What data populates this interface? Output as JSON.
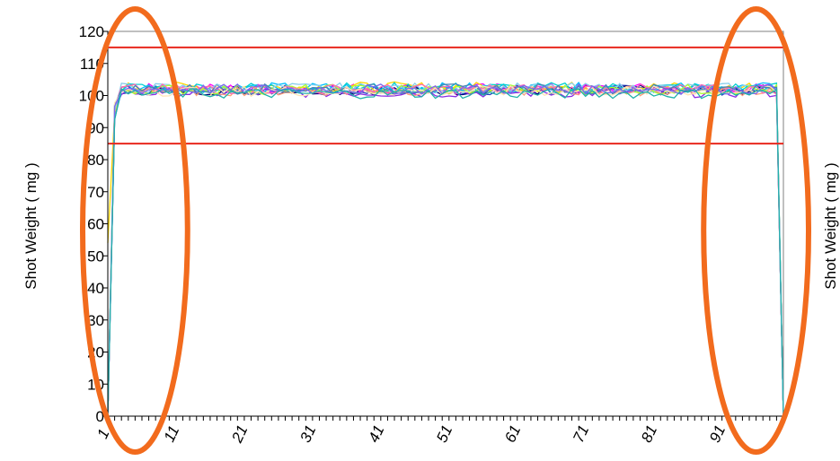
{
  "chart_data": {
    "type": "line",
    "title": "",
    "xlabel": "",
    "ylabel": "Shot Weight ( mg )",
    "ylabel_right": "Shot Weight ( mg )",
    "xlim": [
      1,
      100
    ],
    "ylim": [
      0,
      120
    ],
    "yticks": [
      "0",
      "10",
      "20",
      "30",
      "40",
      "50",
      "60",
      "70",
      "80",
      "90",
      "100",
      "110",
      "120"
    ],
    "xticks": [
      "1",
      "11",
      "21",
      "31",
      "41",
      "51",
      "61",
      "71",
      "81",
      "91"
    ],
    "grid": false,
    "legend": "none",
    "limit_lines": [
      {
        "value": 115,
        "color": "#e8281e"
      },
      {
        "value": 85,
        "color": "#e8281e"
      }
    ],
    "highlight_ellipses": [
      {
        "x_range": [
          1,
          9
        ],
        "color": "#f26b1d"
      },
      {
        "x_range": [
          92,
          100
        ],
        "color": "#f26b1d"
      }
    ],
    "series_colors": [
      "#1f3fbf",
      "#000080",
      "#ff00ff",
      "#ffd700",
      "#00bfff",
      "#8a2be2",
      "#00ced1",
      "#ffa07a",
      "#87ceeb",
      "#adff2f",
      "#ff69b4",
      "#4682b4",
      "#ffe4b5",
      "#7b68ee",
      "#20b2aa"
    ],
    "series_summary": {
      "start_value": 0,
      "end_value": 0,
      "plateau_range": [
        99,
        104
      ],
      "ramp_up_points": 2,
      "ramp_down_points": 1
    }
  }
}
